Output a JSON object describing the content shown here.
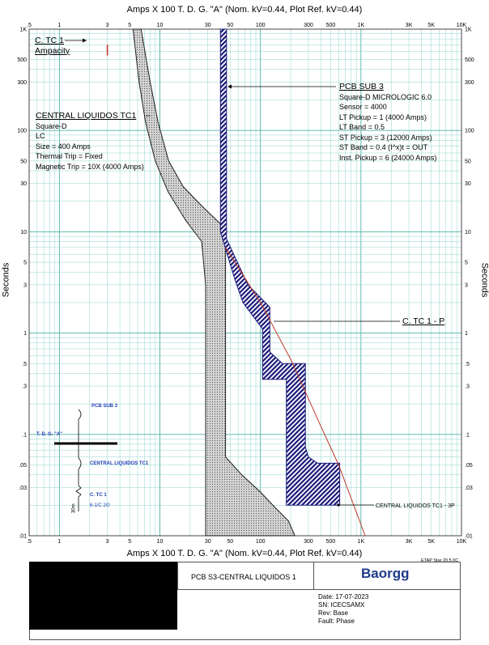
{
  "header": {
    "top_title": "Amps  X  100   T. D. G. \"A\" (Nom. kV=0.44, Plot Ref. kV=0.44)",
    "bottom_title": "Amps  X  100   T. D. G. \"A\" (Nom. kV=0.44, Plot Ref. kV=0.44)",
    "y_axis_label": "Seconds",
    "version": "ETAP Star 20.5.0C"
  },
  "chart_data": {
    "type": "line",
    "x_scale": "log",
    "y_scale": "log",
    "xlim": [
      0.5,
      10000
    ],
    "ylim": [
      0.01,
      1000
    ],
    "x_tick_labels": [
      ".5",
      "1",
      "3",
      "5",
      "10",
      "30",
      "50",
      "100",
      "300",
      "500",
      "1K",
      "3K",
      "5K",
      "10K"
    ],
    "x_tick_values": [
      0.5,
      1,
      3,
      5,
      10,
      30,
      50,
      100,
      300,
      500,
      1000,
      3000,
      5000,
      10000
    ],
    "y_tick_labels": [
      "1K",
      "500",
      "300",
      "100",
      "50",
      "30",
      "10",
      "5",
      "3",
      "1",
      ".5",
      ".3",
      ".1",
      ".05",
      ".03",
      ".01"
    ],
    "y_tick_values": [
      1000,
      500,
      300,
      100,
      50,
      30,
      10,
      5,
      3,
      1,
      0.5,
      0.3,
      0.1,
      0.05,
      0.03,
      0.01
    ],
    "grid": true,
    "series": [
      {
        "name": "CENTRAL LIQUIDOS TC1",
        "kind": "band",
        "left": [
          [
            5.4,
            1000
          ],
          [
            6.2,
            300
          ],
          [
            7.2,
            120
          ],
          [
            9,
            50
          ],
          [
            12,
            25
          ],
          [
            18,
            13
          ],
          [
            26,
            8
          ],
          [
            28.5,
            3
          ],
          [
            28.5,
            0.01
          ]
        ],
        "right": [
          [
            6.5,
            1000
          ],
          [
            8,
            300
          ],
          [
            9.6,
            120
          ],
          [
            12.2,
            50
          ],
          [
            17,
            28
          ],
          [
            26,
            18
          ],
          [
            40,
            12
          ],
          [
            45,
            8
          ],
          [
            45,
            0.06
          ],
          [
            65,
            0.04
          ],
          [
            100,
            0.027
          ],
          [
            140,
            0.019
          ],
          [
            190,
            0.014
          ],
          [
            220,
            0.01
          ]
        ]
      },
      {
        "name": "PCB SUB 3",
        "kind": "band",
        "left": [
          [
            40,
            1000
          ],
          [
            40,
            10
          ],
          [
            55,
            3.5
          ],
          [
            67,
            2
          ],
          [
            105,
            1.1
          ],
          [
            105,
            0.35
          ],
          [
            181,
            0.35
          ],
          [
            181,
            0.02
          ],
          [
            605,
            0.02
          ]
        ],
        "right": [
          [
            46,
            1000
          ],
          [
            46,
            8.5
          ],
          [
            75,
            3
          ],
          [
            124,
            1.8
          ],
          [
            124,
            0.65
          ],
          [
            166,
            0.5
          ],
          [
            280,
            0.5
          ],
          [
            280,
            0.075
          ],
          [
            300,
            0.06
          ],
          [
            370,
            0.052
          ],
          [
            615,
            0.052
          ],
          [
            615,
            0.02
          ]
        ]
      },
      {
        "name": "C. TC 1 - P",
        "kind": "line",
        "color": "#c0392b",
        "points": [
          [
            45,
            7
          ],
          [
            100,
            2
          ],
          [
            200,
            0.55
          ],
          [
            400,
            0.12
          ],
          [
            600,
            0.05
          ],
          [
            1100,
            0.01
          ]
        ]
      },
      {
        "name": "C. TC 1 Ampacity",
        "kind": "marker",
        "color": "#c0392b",
        "points": [
          [
            3,
            700
          ],
          [
            3,
            550
          ]
        ]
      }
    ]
  },
  "annotations": {
    "ctc1": {
      "title": "C. TC 1",
      "sub": "Ampacity"
    },
    "pcb_sub3": {
      "title": "PCB SUB 3",
      "lines": [
        "Square-D  MICROLOGIC 6.0",
        "Sensor = 4000",
        "LT Pickup = 1 (4000 Amps)",
        "LT Band = 0.5",
        "ST Pickup = 3 (12000 Amps)",
        "ST Band = 0.4  (I^x)t = OUT",
        "Inst. Pickup = 6 (24000 Amps)"
      ]
    },
    "central": {
      "title": "CENTRAL LIQUIDOS TC1",
      "lines": [
        "Square-D",
        "LC",
        "Size = 400 Amps",
        "Thermal Trip = Fixed",
        "Magnetic Trip = 10X (4000 Amps)"
      ]
    },
    "ctc1p": "C. TC 1 - P",
    "central_3p": "CENTRAL LIQUIDOS TC1 - 3P"
  },
  "one_line": {
    "pcb": "PCB SUB 3",
    "bus": "T. D. G. \"A\"",
    "breaker": "CENTRAL LIQUIDOS TC1",
    "cable": "C. TC 1",
    "cable_spec": "6-1/C 2/0",
    "length": "30m"
  },
  "footer": {
    "project": "PCB S3-CENTRAL LIQUIDOS 1",
    "logo": "Baorgg",
    "date": "Date:  17-07-2023",
    "sn": "SN:    ICECSAMX",
    "rev": "Rev:   Base",
    "fault": "Fault:  Phase"
  },
  "colors": {
    "grid": "#8fd6cc",
    "band_fill": "#c8c8c8",
    "pcb_fill": "#1a1a7a",
    "red_curve": "#c0392b",
    "blue_text": "#1f3fb5"
  }
}
